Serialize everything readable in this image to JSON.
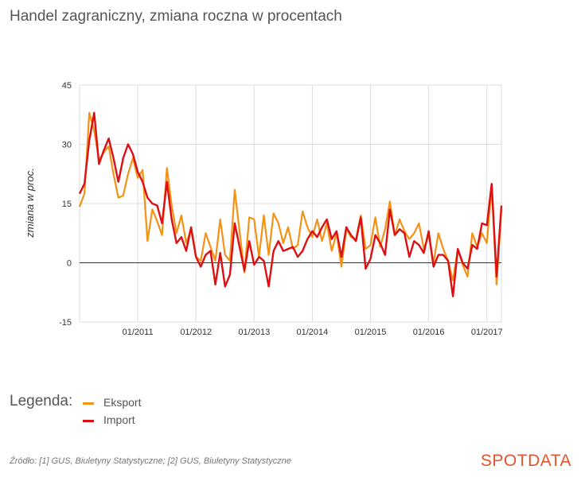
{
  "chart_data": {
    "type": "line",
    "title": "Handel zagraniczny, zmiana roczna w procentach",
    "ylabel": "zmiana w proc.",
    "xlabel": "",
    "ylim": [
      -15,
      45
    ],
    "yticks": [
      45,
      30,
      15,
      0,
      -15
    ],
    "x_start": "2010-01",
    "xticks": [
      {
        "label": "01/2011",
        "index": 12
      },
      {
        "label": "01/2012",
        "index": 24
      },
      {
        "label": "01/2013",
        "index": 36
      },
      {
        "label": "01/2014",
        "index": 48
      },
      {
        "label": "01/2015",
        "index": 60
      },
      {
        "label": "01/2016",
        "index": 72
      },
      {
        "label": "01/2017",
        "index": 84
      }
    ],
    "legend_title": "Legenda:",
    "series": [
      {
        "name": "Eksport",
        "color": "#f39214",
        "values": [
          14.2,
          17.5,
          38.0,
          33.5,
          26.0,
          28.0,
          29.5,
          22.5,
          16.5,
          17.0,
          22.5,
          26.5,
          21.5,
          23.5,
          5.5,
          13.5,
          10.5,
          7.0,
          24.0,
          14.5,
          7.5,
          12.0,
          5.0,
          8.5,
          1.5,
          0.5,
          7.5,
          4.0,
          0.5,
          11.0,
          2.0,
          0.5,
          18.5,
          8.0,
          -2.5,
          11.5,
          11.0,
          1.5,
          12.0,
          2.0,
          12.5,
          10.0,
          5.0,
          9.0,
          3.5,
          4.5,
          13.0,
          9.0,
          6.5,
          11.0,
          5.5,
          10.0,
          3.0,
          7.5,
          -1.0,
          8.5,
          6.5,
          6.0,
          12.0,
          3.5,
          4.5,
          11.5,
          4.0,
          8.5,
          15.5,
          7.0,
          11.0,
          8.0,
          6.0,
          7.5,
          10.0,
          3.5,
          7.0,
          0.0,
          7.5,
          3.5,
          0.5,
          -4.5,
          3.5,
          -0.5,
          -3.5,
          7.5,
          4.0,
          7.5,
          5.0,
          19.5,
          -5.5,
          13.5
        ]
      },
      {
        "name": "Import",
        "color": "#dd0f12",
        "values": [
          17.5,
          20.0,
          31.0,
          38.0,
          25.0,
          28.5,
          31.5,
          26.5,
          20.5,
          26.5,
          30.0,
          27.5,
          23.0,
          20.5,
          16.5,
          15.0,
          14.5,
          10.0,
          20.5,
          11.0,
          5.0,
          6.5,
          3.0,
          9.0,
          1.5,
          -1.0,
          2.0,
          3.0,
          -5.5,
          2.5,
          -6.0,
          -3.0,
          10.0,
          4.0,
          -2.0,
          5.5,
          -0.5,
          1.5,
          0.5,
          -6.0,
          3.0,
          5.5,
          3.0,
          3.5,
          4.0,
          1.5,
          3.0,
          6.0,
          8.0,
          6.5,
          9.0,
          11.0,
          6.0,
          8.0,
          1.5,
          9.0,
          7.0,
          5.5,
          11.5,
          -1.5,
          1.0,
          7.0,
          5.0,
          2.0,
          13.5,
          7.0,
          8.5,
          7.5,
          1.5,
          5.5,
          4.5,
          2.5,
          8.0,
          -1.0,
          2.0,
          2.0,
          0.5,
          -8.5,
          3.5,
          0.0,
          -1.5,
          4.5,
          3.5,
          10.0,
          9.5,
          20.0,
          -3.5,
          14.5
        ]
      }
    ]
  },
  "source": "Źródło: [1] GUS, Biuletyny Statystyczne; [2] GUS, Biuletyny Statystyczne",
  "brand": "SPOTDATA"
}
